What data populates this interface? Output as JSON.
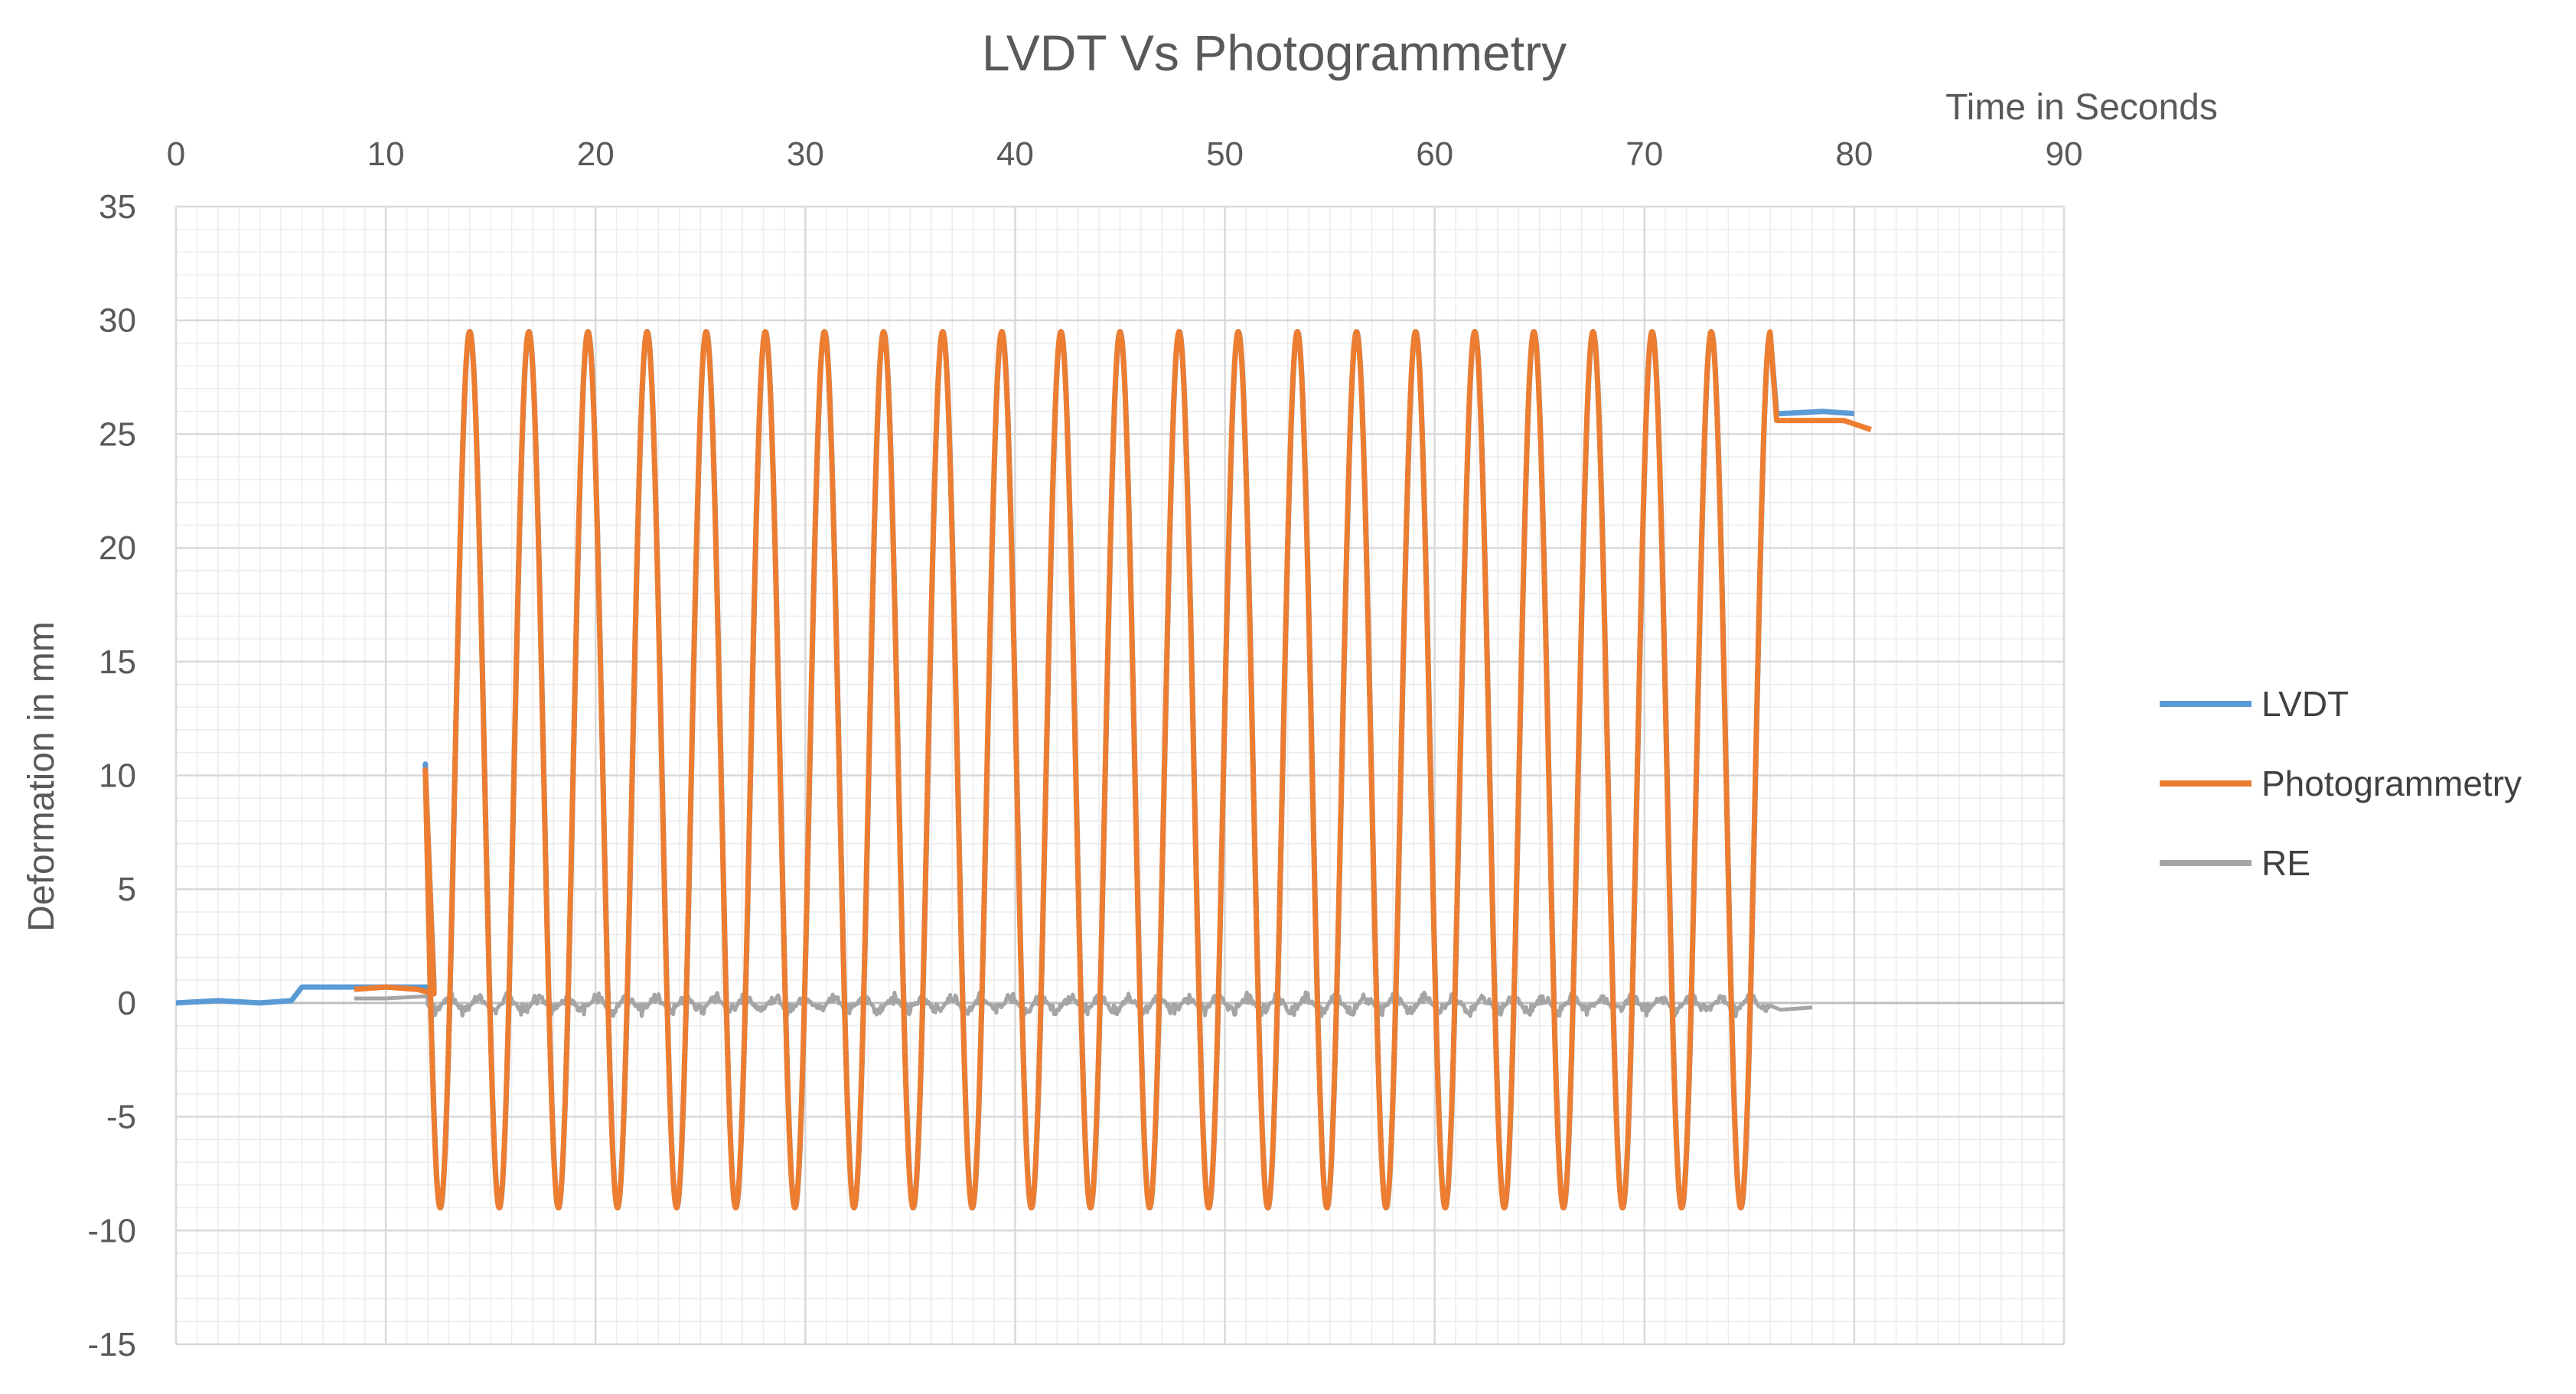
{
  "chart_data": {
    "type": "line",
    "title": "LVDT Vs Photogrammetry",
    "xlabel": "Time in Seconds",
    "ylabel": "Deformation in mm",
    "xlim": [
      0,
      90
    ],
    "ylim": [
      -15,
      35
    ],
    "x_ticks": [
      0,
      10,
      20,
      30,
      40,
      50,
      60,
      70,
      80,
      90
    ],
    "y_ticks": [
      35,
      30,
      25,
      20,
      15,
      10,
      5,
      0,
      -5,
      -10,
      -15
    ],
    "x_axis_position": "top",
    "grid": true,
    "minor_grid": true,
    "legend_position": "right",
    "cycles": {
      "first_peak_time": 14.0,
      "last_peak_time": 76.0,
      "count": 23,
      "peak": 29.5,
      "trough": -9.0
    },
    "series": [
      {
        "name": "LVDT",
        "color": "#5B9BD5",
        "pre_load": [
          [
            0,
            0.0
          ],
          [
            2,
            0.1
          ],
          [
            4,
            0.0
          ],
          [
            5.5,
            0.1
          ],
          [
            6.0,
            0.7
          ],
          [
            7.5,
            0.7
          ],
          [
            8.5,
            0.7
          ]
        ],
        "post_load": [
          [
            76.5,
            25.9
          ],
          [
            78.5,
            26.0
          ],
          [
            80.0,
            25.9
          ]
        ]
      },
      {
        "name": "Photogrammetry",
        "color": "#ED7D31",
        "pre_load": [
          [
            8.5,
            0.6
          ],
          [
            10,
            0.7
          ],
          [
            11.5,
            0.6
          ],
          [
            12.3,
            0.4
          ]
        ],
        "post_load": [
          [
            76.5,
            25.6
          ],
          [
            79.5,
            25.6
          ],
          [
            80.8,
            25.2
          ]
        ]
      },
      {
        "name": "RE",
        "color": "#A5A5A5",
        "pre_load": [
          [
            8.5,
            0.2
          ],
          [
            10,
            0.2
          ],
          [
            12,
            0.3
          ]
        ],
        "band": [
          -0.6,
          0.5
        ],
        "band_end_time": 76.0,
        "post_load": [
          [
            76.5,
            -0.3
          ],
          [
            78,
            -0.2
          ]
        ]
      }
    ]
  }
}
